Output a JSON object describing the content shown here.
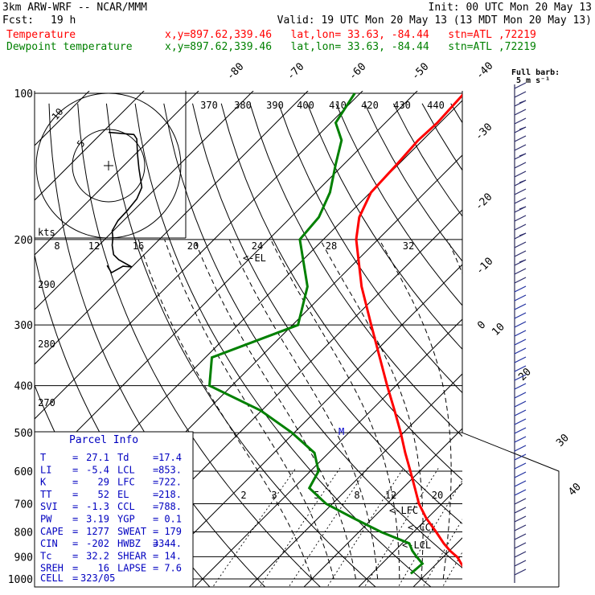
{
  "header": {
    "model": "3km ARW-WRF -- NCAR/MMM",
    "init": "Init: 00 UTC Mon 20 May 13",
    "fcst_label": "Fcst:",
    "fcst_hours": "19 h",
    "valid": "Valid: 19 UTC Mon 20 May 13 (13 MDT Mon 20 May 13)"
  },
  "legend": [
    {
      "name": "Temperature",
      "info": "x,y=897.62,339.46   lat,lon= 33.63, -84.44   stn=ATL ,72219",
      "color": "#ff0000"
    },
    {
      "name": "Dewpoint temperature",
      "info": "x,y=897.62,339.46   lat,lon= 33.63, -84.44   stn=ATL ,72219",
      "color": "#008000"
    }
  ],
  "barb_legend": {
    "title": "Full barb:",
    "value": "5 m s⁻¹"
  },
  "hodograph": {
    "units": "kts",
    "ring_labels": [
      "5",
      "10"
    ],
    "points": [
      [
        -0.2,
        -13.8
      ],
      [
        0.4,
        -14.8
      ],
      [
        2.0,
        -13.9
      ],
      [
        3.2,
        -14.0
      ],
      [
        1.4,
        -13.0
      ],
      [
        0.7,
        -12.3
      ],
      [
        0.5,
        -11.0
      ],
      [
        0.6,
        -10.0
      ],
      [
        0.5,
        -9.0
      ],
      [
        1.3,
        -7.6
      ],
      [
        2.6,
        -6.2
      ],
      [
        3.9,
        -4.6
      ],
      [
        4.6,
        -3.0
      ],
      [
        4.2,
        -0.4
      ],
      [
        4.0,
        1.6
      ],
      [
        3.9,
        3.7
      ],
      [
        3.5,
        4.3
      ],
      [
        0.0,
        4.6
      ]
    ]
  },
  "parcel_info": {
    "title": "Parcel Info",
    "rows": [
      {
        "l1": "T",
        "v1": "27.1",
        "l2": "Td",
        "v2": "17.4"
      },
      {
        "l1": "LI",
        "v1": "-5.4",
        "l2": "LCL",
        "v2": "853."
      },
      {
        "l1": "K",
        "v1": "29",
        "l2": "LFC",
        "v2": "722."
      },
      {
        "l1": "TT",
        "v1": "52",
        "l2": "EL",
        "v2": "218."
      },
      {
        "l1": "SVI",
        "v1": "-1.3",
        "l2": "CCL",
        "v2": "788."
      },
      {
        "l1": "PW",
        "v1": "3.19",
        "l2": "YGP",
        "v2": "0.1"
      },
      {
        "l1": "CAPE",
        "v1": "1277",
        "l2": "SWEAT",
        "v2": "179"
      },
      {
        "l1": "CIN",
        "v1": "-202",
        "l2": "HWBZ",
        "v2": "3344."
      },
      {
        "l1": "Tc",
        "v1": "32.2",
        "l2": "SHEAR",
        "v2": "14."
      },
      {
        "l1": "SREH",
        "v1": "16",
        "l2": "LAPSE",
        "v2": "7.6"
      }
    ],
    "cell_label": "CELL",
    "cell_value": "323/05"
  },
  "annotations": {
    "lfc": "<-LFC",
    "ccl": "<-CCL",
    "lcl": "<-LCL",
    "el": "<-EL",
    "m": "M"
  },
  "chart_data": {
    "type": "line",
    "title": "",
    "xlabel": "",
    "ylabel": "",
    "pressure_ticks": [
      100,
      200,
      300,
      400,
      500,
      600,
      700,
      800,
      900,
      1000
    ],
    "pressure_tick_labels": [
      "100",
      "200",
      "300",
      "400",
      "500",
      "600",
      "700",
      "800",
      "900",
      "1000"
    ],
    "isotherm_labels": [
      "40",
      "30",
      "20",
      "10",
      "0",
      "-10",
      "-20",
      "-30",
      "-40",
      "-50",
      "-60",
      "-70",
      "-80"
    ],
    "theta_labels": [
      "370",
      "380",
      "390",
      "400",
      "410",
      "420",
      "430",
      "440"
    ],
    "theta_low_labels": [
      "290",
      "280",
      "270"
    ],
    "mixing_ratio_labels": [
      "2",
      "3",
      "5",
      "8",
      "12",
      "20"
    ],
    "hodo_speed_labels": [
      "8",
      "12",
      "16",
      "20",
      "24",
      "28",
      "32"
    ],
    "series": [
      {
        "name": "Temperature",
        "color": "#ff0000",
        "p": [
          975,
          930,
          903,
          875,
          845,
          800,
          750,
          700,
          650,
          600,
          550,
          500,
          450,
          400,
          350,
          300,
          250,
          200,
          180,
          160,
          140,
          125,
          115,
          100
        ],
        "t": [
          27.6,
          24.5,
          22.7,
          20.1,
          17.6,
          14.1,
          9.8,
          5.8,
          2.2,
          -1.7,
          -6.0,
          -10.5,
          -15.7,
          -21.6,
          -28.1,
          -35.6,
          -44.4,
          -54.0,
          -57.5,
          -59.9,
          -60.3,
          -60.8,
          -60.5,
          -61.0
        ]
      },
      {
        "name": "Dewpoint temperature",
        "color": "#008000",
        "p": [
          975,
          930,
          903,
          875,
          845,
          800,
          750,
          700,
          650,
          600,
          550,
          500,
          450,
          400,
          350,
          300,
          250,
          200,
          180,
          160,
          140,
          125,
          115,
          100
        ],
        "t": [
          17.1,
          17.4,
          15.3,
          13.2,
          11.3,
          4.0,
          -3.5,
          -11.2,
          -17.1,
          -18.5,
          -22.6,
          -30.4,
          -40.2,
          -54.1,
          -58.8,
          -49.0,
          -54.3,
          -64.3,
          -64.9,
          -67.4,
          -71.5,
          -74.8,
          -79.1,
          -81.0
        ]
      }
    ]
  }
}
